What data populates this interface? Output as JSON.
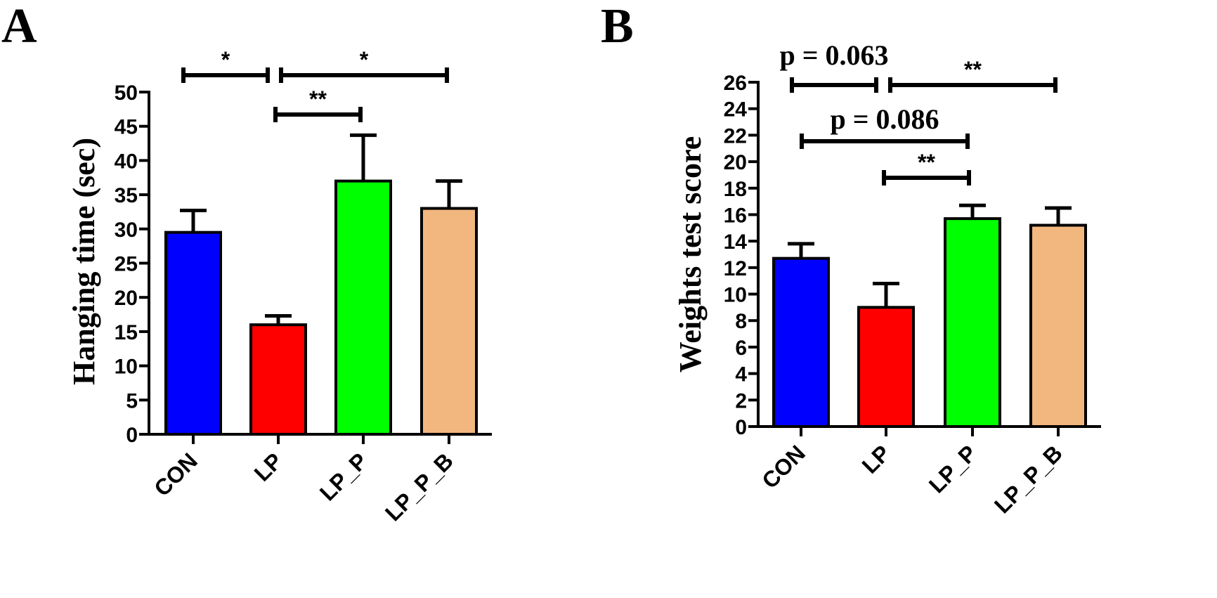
{
  "chart_data": [
    {
      "panel": "A",
      "type": "bar",
      "ylabel": "Hanging time (sec)",
      "categories": [
        "CON",
        "LP",
        "LP_P",
        "LP_P_B"
      ],
      "values": [
        29.5,
        16,
        37,
        33
      ],
      "errors": [
        3.2,
        1.3,
        6.7,
        4
      ],
      "colors": [
        "#0000ff",
        "#ff0000",
        "#00ff00",
        "#f2b77f"
      ],
      "ylim": [
        0,
        50
      ],
      "yticks": [
        "0",
        "5",
        "10",
        "15",
        "20",
        "25",
        "30",
        "35",
        "40",
        "45",
        "50"
      ],
      "comparisons": [
        {
          "from": "CON",
          "to": "LP",
          "label": "*"
        },
        {
          "from": "LP",
          "to": "LP_P_B",
          "label": "*"
        },
        {
          "from": "LP",
          "to": "LP_P",
          "label": "**"
        }
      ]
    },
    {
      "panel": "B",
      "type": "bar",
      "ylabel": "Weights test score",
      "categories": [
        "CON",
        "LP",
        "LP_P",
        "LP_P_B"
      ],
      "values": [
        12.7,
        9,
        15.7,
        15.2
      ],
      "errors": [
        1.1,
        1.8,
        1,
        1.3
      ],
      "colors": [
        "#0000ff",
        "#ff0000",
        "#00ff00",
        "#f2b77f"
      ],
      "ylim": [
        0,
        26
      ],
      "yticks": [
        "0",
        "2",
        "4",
        "6",
        "8",
        "10",
        "12",
        "14",
        "16",
        "18",
        "20",
        "22",
        "24",
        "26"
      ],
      "comparisons": [
        {
          "from": "CON",
          "to": "LP",
          "label": "p = 0.063"
        },
        {
          "from": "LP",
          "to": "LP_P_B",
          "label": "**"
        },
        {
          "from": "CON",
          "to": "LP_P",
          "label": "p = 0.086"
        },
        {
          "from": "LP",
          "to": "LP_P",
          "label": "**"
        }
      ]
    }
  ]
}
